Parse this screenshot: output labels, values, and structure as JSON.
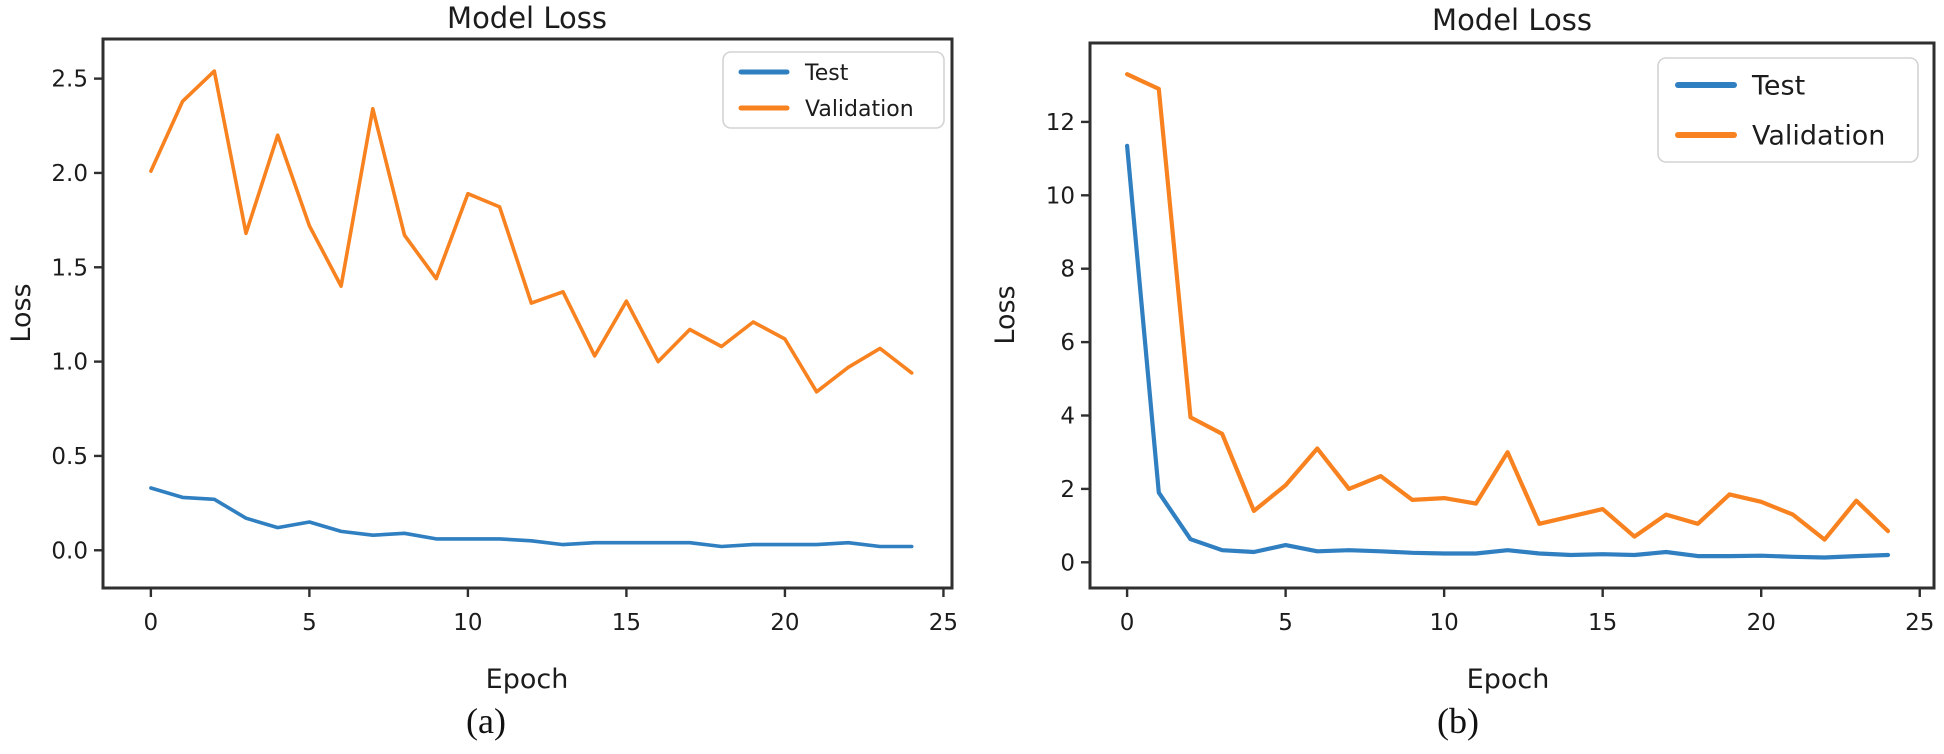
{
  "figure_name": "model-loss-training-curves",
  "colors": {
    "test_line": "#2f7fc1",
    "validation_line": "#f8821f",
    "spine": "#2f2f2f",
    "legend_border": "#d3d3d3",
    "text": "#1c1c1c"
  },
  "chart_data": [
    {
      "type": "line",
      "title": "Model Loss",
      "xlabel": "Epoch",
      "ylabel": "Loss",
      "caption": "(a)",
      "grid": false,
      "legend_position": "upper right",
      "x": [
        0,
        1,
        2,
        3,
        4,
        5,
        6,
        7,
        8,
        9,
        10,
        11,
        12,
        13,
        14,
        15,
        16,
        17,
        18,
        19,
        20,
        21,
        22,
        23,
        24
      ],
      "series": [
        {
          "name": "Test",
          "color": "#2f7fc1",
          "values": [
            0.33,
            0.28,
            0.27,
            0.17,
            0.12,
            0.15,
            0.1,
            0.08,
            0.09,
            0.06,
            0.06,
            0.06,
            0.05,
            0.03,
            0.04,
            0.04,
            0.04,
            0.04,
            0.02,
            0.03,
            0.03,
            0.03,
            0.04,
            0.02,
            0.02
          ]
        },
        {
          "name": "Validation",
          "color": "#f8821f",
          "values": [
            2.01,
            2.38,
            2.54,
            1.68,
            2.2,
            1.72,
            1.4,
            2.34,
            1.67,
            1.44,
            1.89,
            1.82,
            1.31,
            1.37,
            1.03,
            1.32,
            1.0,
            1.17,
            1.08,
            1.21,
            1.12,
            0.84,
            0.97,
            1.07,
            0.94
          ]
        }
      ],
      "xticks": {
        "values": [
          0,
          5,
          10,
          15,
          20,
          25
        ],
        "labels": [
          "0",
          "5",
          "10",
          "15",
          "20",
          "25"
        ]
      },
      "yticks": {
        "values": [
          0,
          0.5,
          1.0,
          1.5,
          2.0,
          2.5
        ],
        "labels": [
          "0.0",
          "0.5",
          "1.0",
          "1.5",
          "2.0",
          "2.5"
        ]
      },
      "xlim": [
        -1.51,
        25.27
      ],
      "ylim": [
        -0.2,
        2.71
      ]
    },
    {
      "type": "line",
      "title": "Model Loss",
      "xlabel": "Epoch",
      "ylabel": "Loss",
      "caption": "(b)",
      "grid": false,
      "legend_position": "upper right",
      "x": [
        0,
        1,
        2,
        3,
        4,
        5,
        6,
        7,
        8,
        9,
        10,
        11,
        12,
        13,
        14,
        15,
        16,
        17,
        18,
        19,
        20,
        21,
        22,
        23,
        24
      ],
      "series": [
        {
          "name": "Test",
          "color": "#2f7fc1",
          "values": [
            11.35,
            1.9,
            0.63,
            0.33,
            0.28,
            0.47,
            0.3,
            0.33,
            0.3,
            0.26,
            0.24,
            0.24,
            0.33,
            0.24,
            0.2,
            0.22,
            0.2,
            0.28,
            0.17,
            0.17,
            0.18,
            0.15,
            0.13,
            0.17,
            0.2
          ]
        },
        {
          "name": "Validation",
          "color": "#f8821f",
          "values": [
            13.3,
            12.9,
            3.95,
            3.5,
            1.4,
            2.1,
            3.1,
            2.0,
            2.35,
            1.7,
            1.75,
            1.6,
            3.0,
            1.05,
            1.25,
            1.45,
            0.7,
            1.3,
            1.05,
            1.85,
            1.65,
            1.3,
            0.62,
            1.68,
            0.85
          ]
        }
      ],
      "xticks": {
        "values": [
          0,
          5,
          10,
          15,
          20,
          25
        ],
        "labels": [
          "0",
          "5",
          "10",
          "15",
          "20",
          "25"
        ]
      },
      "yticks": {
        "values": [
          0,
          2,
          4,
          6,
          8,
          10,
          12
        ],
        "labels": [
          "0",
          "2",
          "4",
          "6",
          "8",
          "10",
          "12"
        ]
      },
      "xlim": [
        -1.17,
        25.45
      ],
      "ylim": [
        -0.7,
        14.15
      ]
    }
  ]
}
